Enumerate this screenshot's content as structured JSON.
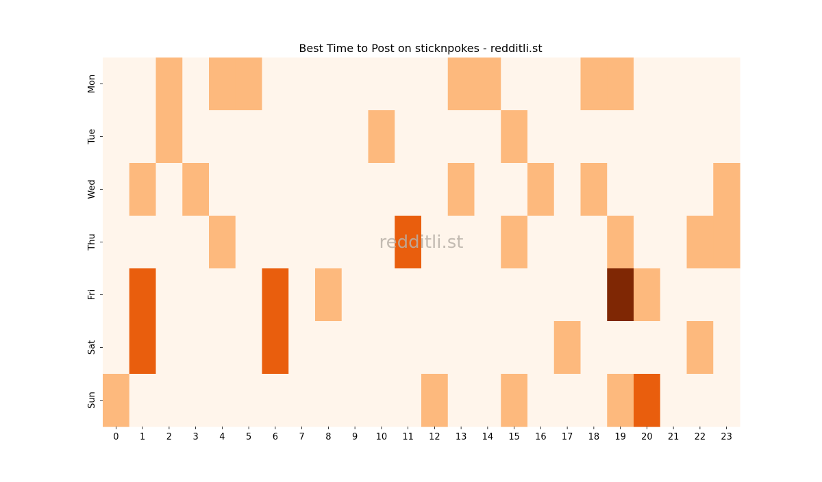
{
  "chart_data": {
    "type": "heatmap",
    "title": "Best Time to Post on sticknpokes - redditli.st",
    "watermark": "redditli.st",
    "x_categories": [
      "0",
      "1",
      "2",
      "3",
      "4",
      "5",
      "6",
      "7",
      "8",
      "9",
      "10",
      "11",
      "12",
      "13",
      "14",
      "15",
      "16",
      "17",
      "18",
      "19",
      "20",
      "21",
      "22",
      "23"
    ],
    "y_categories": [
      "Mon",
      "Tue",
      "Wed",
      "Thu",
      "Fri",
      "Sat",
      "Sun"
    ],
    "values": [
      [
        0,
        0,
        1,
        0,
        1,
        1,
        0,
        0,
        0,
        0,
        0,
        0,
        0,
        1,
        1,
        0,
        0,
        0,
        1,
        1,
        0,
        0,
        0,
        0
      ],
      [
        0,
        0,
        1,
        0,
        0,
        0,
        0,
        0,
        0,
        0,
        1,
        0,
        0,
        0,
        0,
        1,
        0,
        0,
        0,
        0,
        0,
        0,
        0,
        0
      ],
      [
        0,
        1,
        0,
        1,
        0,
        0,
        0,
        0,
        0,
        0,
        0,
        0,
        0,
        1,
        0,
        0,
        1,
        0,
        1,
        0,
        0,
        0,
        0,
        1
      ],
      [
        0,
        0,
        0,
        0,
        1,
        0,
        0,
        0,
        0,
        0,
        0,
        2,
        0,
        0,
        0,
        1,
        0,
        0,
        0,
        1,
        0,
        0,
        1,
        1
      ],
      [
        0,
        2,
        0,
        0,
        0,
        0,
        2,
        0,
        1,
        0,
        0,
        0,
        0,
        0,
        0,
        0,
        0,
        0,
        0,
        3,
        1,
        0,
        0,
        0
      ],
      [
        0,
        2,
        0,
        0,
        0,
        0,
        2,
        0,
        0,
        0,
        0,
        0,
        0,
        0,
        0,
        0,
        0,
        1,
        0,
        0,
        0,
        0,
        1,
        0
      ],
      [
        1,
        0,
        0,
        0,
        0,
        0,
        0,
        0,
        0,
        0,
        0,
        0,
        1,
        0,
        0,
        1,
        0,
        0,
        0,
        1,
        2,
        0,
        0,
        0
      ]
    ],
    "color_scale": [
      "#fff5eb",
      "#fdb97d",
      "#e95e0d",
      "#7f2704"
    ],
    "xlabel": "",
    "ylabel": ""
  }
}
